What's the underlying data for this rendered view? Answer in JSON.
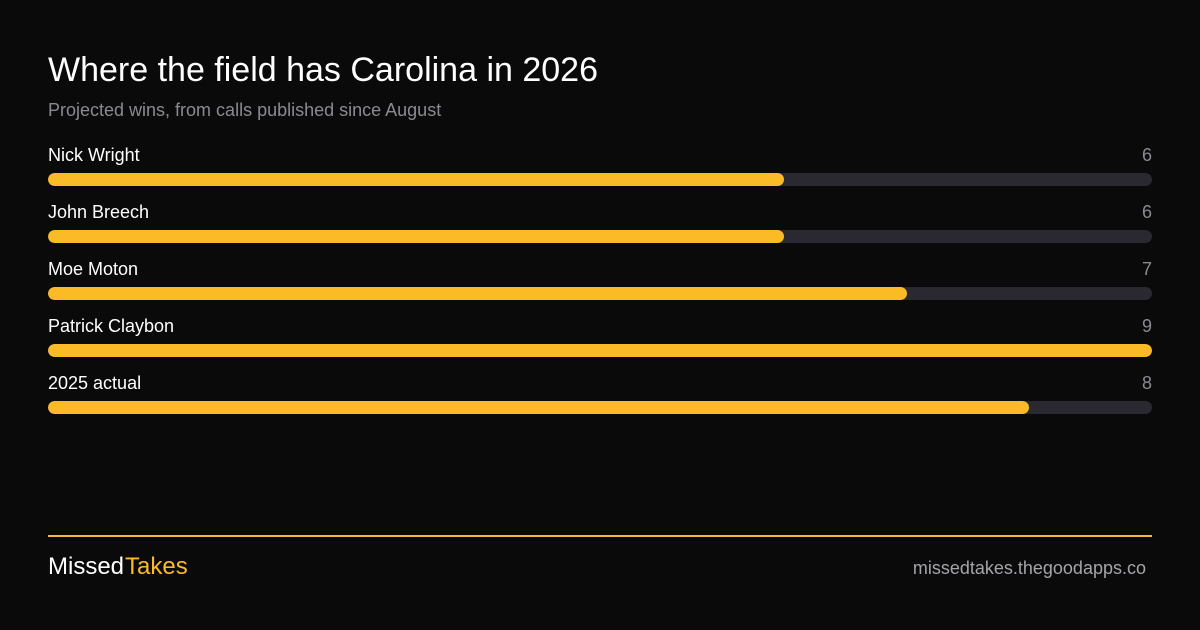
{
  "chart_data": {
    "type": "bar",
    "orientation": "horizontal",
    "title": "Where the field has Carolina in 2026",
    "subtitle": "Projected wins, from calls published since August",
    "categories": [
      "Nick Wright",
      "John Breech",
      "Moe Moton",
      "Patrick Claybon",
      "2025 actual"
    ],
    "values": [
      6,
      6,
      7,
      9,
      8
    ],
    "xlim": [
      0,
      9
    ],
    "grid": false
  },
  "footer": {
    "brand_part1": "Missed",
    "brand_part2": "Takes",
    "site": "missedtakes.thegoodapps.co"
  },
  "colors": {
    "accent": "#fbbb27",
    "track": "#2a2830",
    "divider": "#f5b935",
    "brand_text": "#ffffff"
  }
}
